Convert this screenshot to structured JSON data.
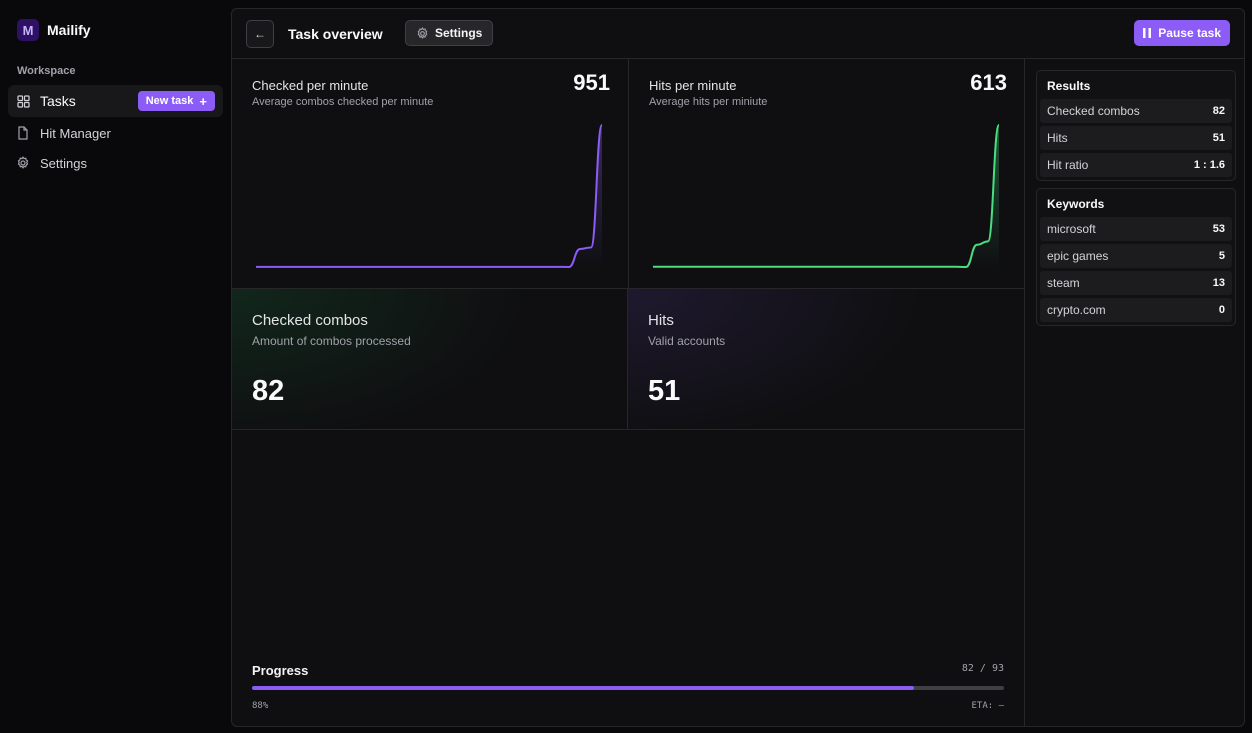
{
  "brand": {
    "logo_letter": "M",
    "name": "Mailify"
  },
  "sidebar": {
    "section_label": "Workspace",
    "items": [
      {
        "label": "Tasks",
        "icon": "grid-icon",
        "active": true
      },
      {
        "label": "Hit Manager",
        "icon": "file-icon"
      },
      {
        "label": "Settings",
        "icon": "gear-icon"
      }
    ],
    "new_task_label": "New task",
    "new_task_plus": "+"
  },
  "header": {
    "back_glyph": "←",
    "title": "Task overview",
    "settings_label": "Settings",
    "pause_label": "Pause task"
  },
  "stats": {
    "cpm": {
      "title": "Checked per minute",
      "subtitle": "Average combos checked per minute",
      "value": "951"
    },
    "hpm": {
      "title": "Hits per minute",
      "subtitle": "Average hits per miniute",
      "value": "613"
    },
    "checked": {
      "title": "Checked combos",
      "subtitle": "Amount of combos processed",
      "value": "82"
    },
    "hits": {
      "title": "Hits",
      "subtitle": "Valid accounts",
      "value": "51"
    }
  },
  "progress": {
    "label": "Progress",
    "count": "82 / 93",
    "fraction": 0.88,
    "percent_label": "88%",
    "eta_label": "ETA: —"
  },
  "results": {
    "title": "Results",
    "rows": [
      {
        "label": "Checked combos",
        "value": "82"
      },
      {
        "label": "Hits",
        "value": "51"
      },
      {
        "label": "Hit ratio",
        "value": "1 : 1.6"
      }
    ]
  },
  "keywords": {
    "title": "Keywords",
    "rows": [
      {
        "label": "microsoft",
        "value": "53"
      },
      {
        "label": "epic games",
        "value": "5"
      },
      {
        "label": "steam",
        "value": "13"
      },
      {
        "label": "crypto.com",
        "value": "0"
      }
    ]
  },
  "colors": {
    "accent": "#8b5cf6",
    "cpm_line": "#8b5cf6",
    "hpm_line": "#4ade80"
  },
  "chart_data": [
    {
      "type": "area",
      "series": [
        {
          "values": [
            0,
            0,
            0,
            0,
            0,
            0,
            0,
            0,
            0,
            0,
            0,
            0,
            0,
            0,
            0,
            0,
            -1,
            120,
            130,
            951
          ]
        }
      ]
    },
    {
      "type": "area",
      "series": [
        {
          "values": [
            0,
            0,
            0,
            0,
            0,
            0,
            0,
            0,
            0,
            0,
            0,
            0,
            0,
            0,
            0,
            0,
            -1,
            95,
            110,
            613
          ]
        }
      ]
    }
  ]
}
